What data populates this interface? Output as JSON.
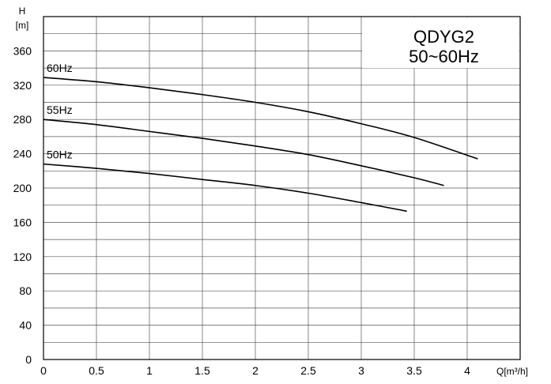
{
  "chart_data": {
    "type": "line",
    "title": "QDYG2",
    "subtitle": "50~60Hz",
    "ylabel": "H",
    "yunit": "[m]",
    "xlabel": "Q[m³/h]",
    "xlim": [
      0,
      4.5
    ],
    "ylim": [
      0,
      400
    ],
    "x_ticks": [
      "0",
      "0.5",
      "1",
      "1.5",
      "2",
      "2.5",
      "3",
      "3.5",
      "4"
    ],
    "y_ticks": [
      "0",
      "40",
      "80",
      "120",
      "160",
      "200",
      "240",
      "280",
      "320",
      "360"
    ],
    "grid": true,
    "series": [
      {
        "name": "60Hz",
        "x": [
          0,
          0.5,
          1,
          1.5,
          2,
          2.5,
          3,
          3.5,
          4.1
        ],
        "y": [
          329,
          324,
          317,
          309,
          300,
          289,
          275,
          259,
          234
        ]
      },
      {
        "name": "55Hz",
        "x": [
          0,
          0.5,
          1,
          1.5,
          2,
          2.5,
          3,
          3.5,
          3.78
        ],
        "y": [
          280,
          274,
          266,
          258,
          249,
          239,
          226,
          212,
          203
        ]
      },
      {
        "name": "50Hz",
        "x": [
          0,
          0.5,
          1,
          1.5,
          2,
          2.5,
          3,
          3.43
        ],
        "y": [
          228,
          223,
          217,
          210,
          203,
          194,
          183,
          173
        ]
      }
    ]
  }
}
